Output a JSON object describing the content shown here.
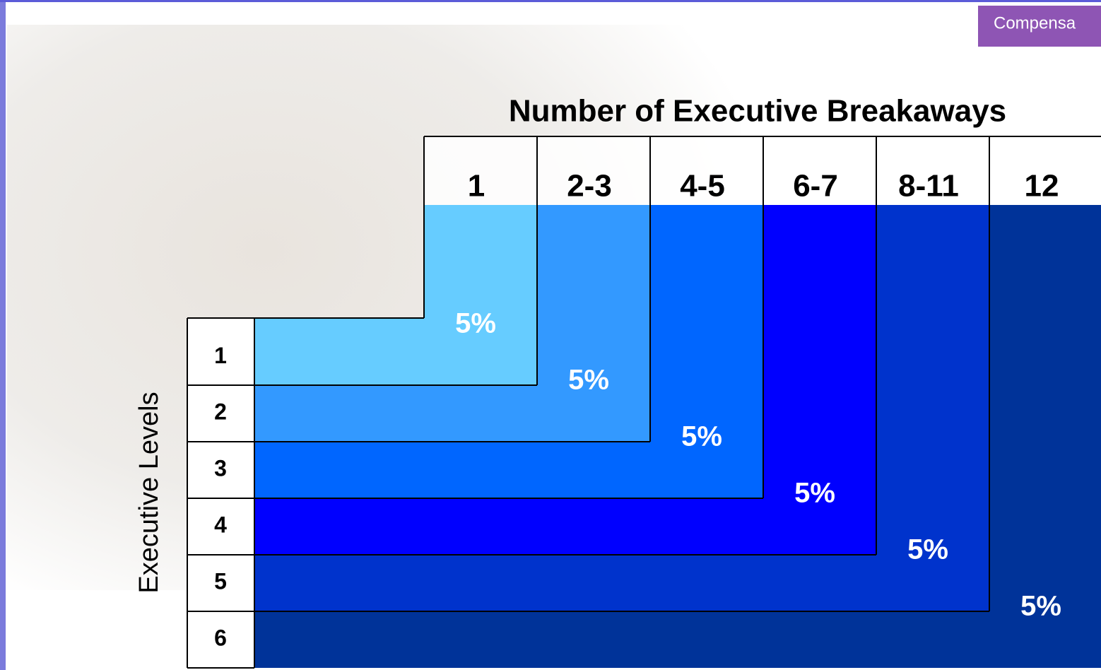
{
  "header": {
    "tab": "Compensa"
  },
  "title": "Number of Executive Breakaways",
  "columns": [
    "1",
    "2-3",
    "4-5",
    "6-7",
    "8-11",
    "12"
  ],
  "row_axis_label": "Executive Levels",
  "rows": [
    "1",
    "2",
    "3",
    "4",
    "5",
    "6"
  ],
  "steps": [
    "5%",
    "5%",
    "5%",
    "5%",
    "5%",
    "5%"
  ]
}
